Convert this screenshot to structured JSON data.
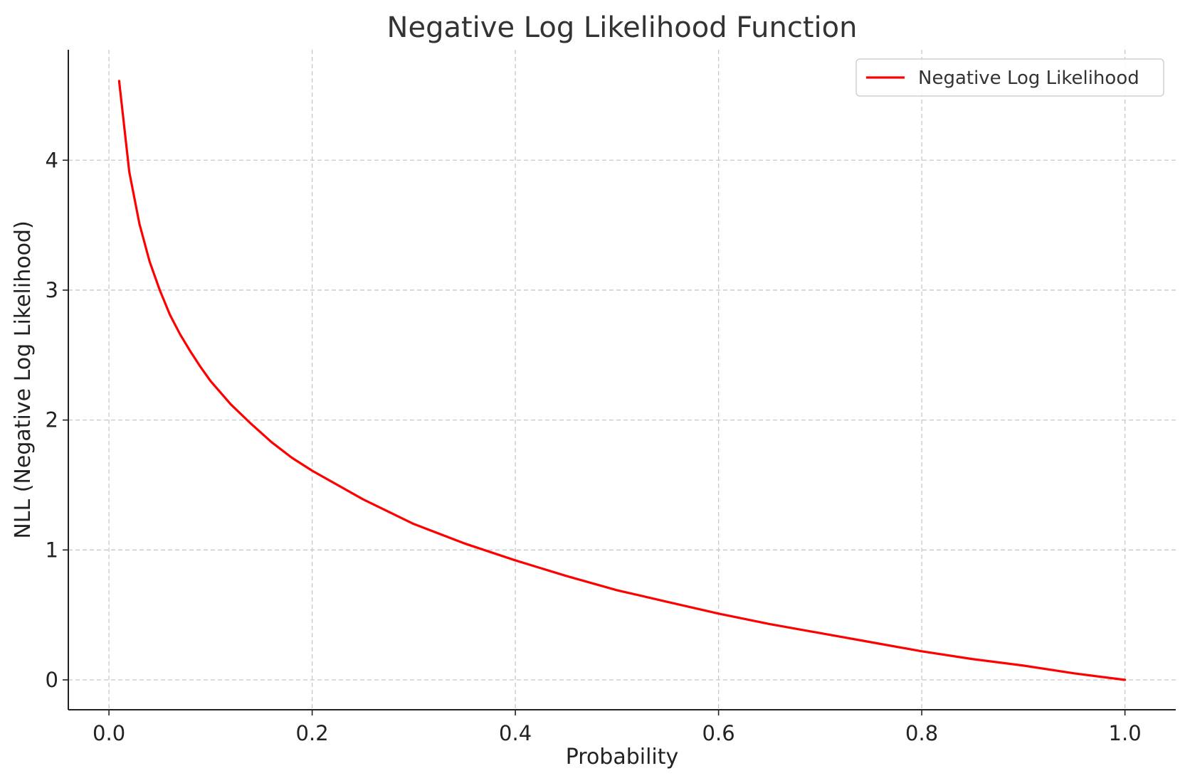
{
  "chart_data": {
    "type": "line",
    "title": "Negative Log Likelihood Function",
    "xlabel": "Probability",
    "ylabel": "NLL (Negative Log Likelihood)",
    "xlim": [
      -0.04,
      1.05
    ],
    "ylim": [
      -0.23,
      4.85
    ],
    "x_ticks": [
      0.0,
      0.2,
      0.4,
      0.6,
      0.8,
      1.0
    ],
    "x_tick_labels": [
      "0.0",
      "0.2",
      "0.4",
      "0.6",
      "0.8",
      "1.0"
    ],
    "y_ticks": [
      0,
      1,
      2,
      3,
      4
    ],
    "y_tick_labels": [
      "0",
      "1",
      "2",
      "3",
      "4"
    ],
    "grid": true,
    "legend_position": "top-right",
    "series": [
      {
        "name": "Negative Log Likelihood",
        "color": "#ff0000",
        "x": [
          0.01,
          0.02,
          0.03,
          0.04,
          0.05,
          0.06,
          0.07,
          0.08,
          0.09,
          0.1,
          0.12,
          0.14,
          0.16,
          0.18,
          0.2,
          0.25,
          0.3,
          0.35,
          0.4,
          0.45,
          0.5,
          0.55,
          0.6,
          0.65,
          0.7,
          0.75,
          0.8,
          0.85,
          0.9,
          0.95,
          1.0
        ],
        "y": [
          4.61,
          3.91,
          3.51,
          3.22,
          3.0,
          2.81,
          2.66,
          2.53,
          2.41,
          2.3,
          2.12,
          1.97,
          1.83,
          1.71,
          1.61,
          1.39,
          1.2,
          1.05,
          0.92,
          0.8,
          0.69,
          0.6,
          0.51,
          0.43,
          0.36,
          0.29,
          0.22,
          0.16,
          0.11,
          0.05,
          0.0
        ]
      }
    ]
  }
}
